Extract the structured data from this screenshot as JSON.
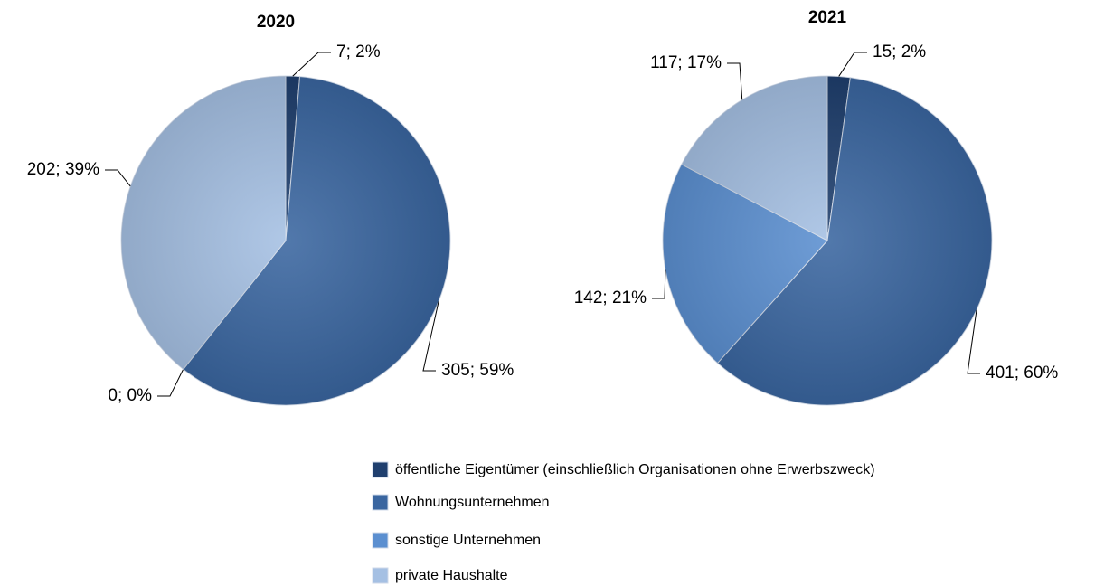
{
  "chart_data": [
    {
      "type": "pie",
      "title": "2020",
      "values": [
        7,
        305,
        0,
        202
      ],
      "value_labels": [
        "7; 2%",
        "305; 59%",
        "0; 0%",
        "202; 39%"
      ]
    },
    {
      "type": "pie",
      "title": "2021",
      "values": [
        15,
        401,
        142,
        117
      ],
      "value_labels": [
        "15; 2%",
        "401; 60%",
        "142; 21%",
        "117; 17%"
      ]
    }
  ],
  "legend": {
    "categories": [
      "öffentliche Eigentümer (einschließlich Organisationen ohne Erwerbszweck)",
      "Wohnungsunternehmen",
      "sonstige Unternehmen",
      "private Haushalte"
    ],
    "colors": [
      "#1f3f6e",
      "#3a66a0",
      "#5b8fd0",
      "#a5c0e3"
    ]
  }
}
